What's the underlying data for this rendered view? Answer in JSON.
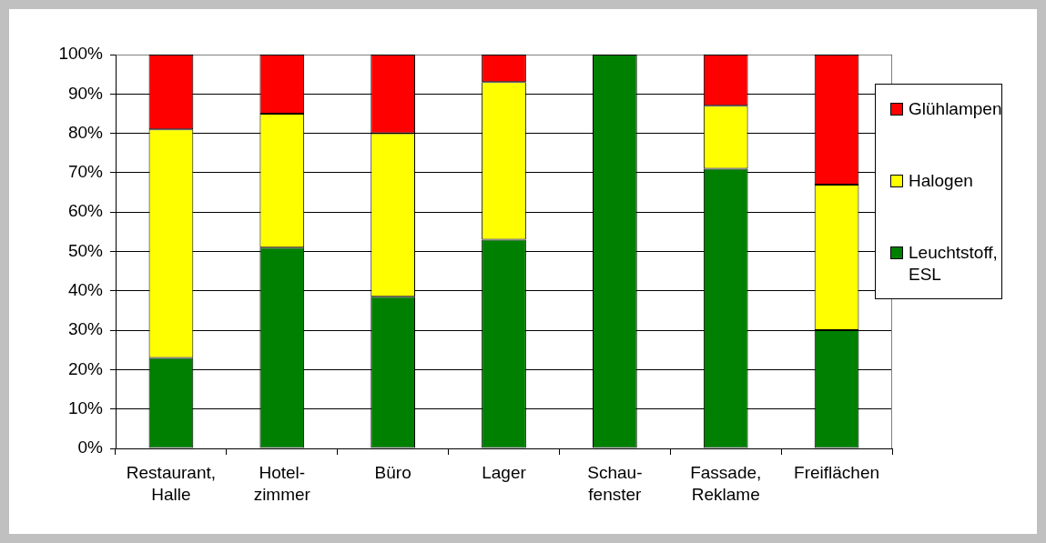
{
  "chart_data": {
    "type": "bar",
    "stacked": true,
    "categories": [
      "Restaurant,\nHalle",
      "Hotel-\nzimmer",
      "Büro",
      "Lager",
      "Schau-\nfenster",
      "Fassade,\nReklame",
      "Freiflächen"
    ],
    "series": [
      {
        "name": "Leuchtstoff, ESL",
        "color": "#008000",
        "values": [
          23,
          51,
          38.5,
          53,
          100,
          71,
          30
        ]
      },
      {
        "name": "Halogen",
        "color": "#ffff00",
        "values": [
          58,
          34,
          41.5,
          40,
          0,
          16,
          37
        ]
      },
      {
        "name": "Glühlampen",
        "color": "#ff0000",
        "values": [
          19,
          15,
          20,
          7,
          0,
          13,
          33
        ]
      }
    ],
    "ylim": [
      0,
      100
    ],
    "yticks": [
      {
        "value": 0,
        "label": "0%"
      },
      {
        "value": 10,
        "label": "10%"
      },
      {
        "value": 20,
        "label": "20%"
      },
      {
        "value": 30,
        "label": "30%"
      },
      {
        "value": 40,
        "label": "40%"
      },
      {
        "value": 50,
        "label": "50%"
      },
      {
        "value": 60,
        "label": "60%"
      },
      {
        "value": 70,
        "label": "70%"
      },
      {
        "value": 80,
        "label": "80%"
      },
      {
        "value": 90,
        "label": "90%"
      },
      {
        "value": 100,
        "label": "100%"
      }
    ],
    "grid": "y",
    "legend": "right"
  }
}
